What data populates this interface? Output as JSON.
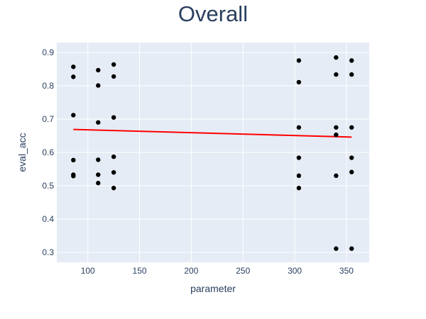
{
  "chart_data": {
    "type": "scatter",
    "title": "Overall",
    "xlabel": "parameter",
    "ylabel": "eval_acc",
    "xlim": [
      70,
      372
    ],
    "ylim": [
      0.27,
      0.93
    ],
    "xticks": [
      100,
      150,
      200,
      250,
      300,
      350
    ],
    "yticks": [
      0.3,
      0.4,
      0.5,
      0.6,
      0.7,
      0.8,
      0.9
    ],
    "grid": true,
    "colors": {
      "background": "#e5ecf6",
      "points": "#000000",
      "trendline": "#ff0000"
    },
    "points": [
      {
        "x": 86,
        "y": 0.857
      },
      {
        "x": 86,
        "y": 0.827
      },
      {
        "x": 86,
        "y": 0.712
      },
      {
        "x": 86,
        "y": 0.577
      },
      {
        "x": 86,
        "y": 0.533
      },
      {
        "x": 86,
        "y": 0.529
      },
      {
        "x": 110,
        "y": 0.847
      },
      {
        "x": 110,
        "y": 0.801
      },
      {
        "x": 110,
        "y": 0.69
      },
      {
        "x": 110,
        "y": 0.578
      },
      {
        "x": 110,
        "y": 0.533
      },
      {
        "x": 110,
        "y": 0.508
      },
      {
        "x": 125,
        "y": 0.864
      },
      {
        "x": 125,
        "y": 0.828
      },
      {
        "x": 125,
        "y": 0.705
      },
      {
        "x": 125,
        "y": 0.587
      },
      {
        "x": 125,
        "y": 0.54
      },
      {
        "x": 125,
        "y": 0.493
      },
      {
        "x": 304,
        "y": 0.876
      },
      {
        "x": 304,
        "y": 0.811
      },
      {
        "x": 304,
        "y": 0.675
      },
      {
        "x": 304,
        "y": 0.584
      },
      {
        "x": 304,
        "y": 0.53
      },
      {
        "x": 304,
        "y": 0.493
      },
      {
        "x": 340,
        "y": 0.885
      },
      {
        "x": 340,
        "y": 0.834
      },
      {
        "x": 340,
        "y": 0.675
      },
      {
        "x": 340,
        "y": 0.653
      },
      {
        "x": 340,
        "y": 0.53
      },
      {
        "x": 340,
        "y": 0.311
      },
      {
        "x": 355,
        "y": 0.876
      },
      {
        "x": 355,
        "y": 0.834
      },
      {
        "x": 355,
        "y": 0.675
      },
      {
        "x": 355,
        "y": 0.584
      },
      {
        "x": 355,
        "y": 0.541
      },
      {
        "x": 355,
        "y": 0.311
      }
    ],
    "trendline": [
      {
        "x": 86,
        "y": 0.669
      },
      {
        "x": 355,
        "y": 0.646
      }
    ]
  }
}
